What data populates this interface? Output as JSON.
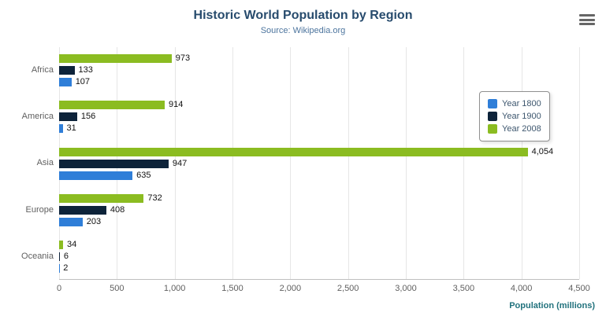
{
  "chart_data": {
    "type": "bar",
    "title": "Historic World Population by Region",
    "subtitle": "Source: Wikipedia.org",
    "xlabel": "Population (millions)",
    "categories": [
      "Africa",
      "America",
      "Asia",
      "Europe",
      "Oceania"
    ],
    "series": [
      {
        "name": "Year 1800",
        "color": "#2f7ed8",
        "values": [
          107,
          31,
          635,
          203,
          2
        ]
      },
      {
        "name": "Year 1900",
        "color": "#0d233a",
        "values": [
          133,
          156,
          947,
          408,
          6
        ]
      },
      {
        "name": "Year 2008",
        "color": "#8bbc21",
        "values": [
          973,
          914,
          4054,
          732,
          34
        ]
      }
    ],
    "bar_order_top_to_bottom": [
      "Year 2008",
      "Year 1900",
      "Year 1800"
    ],
    "xlim": [
      0,
      4500
    ],
    "xticks": [
      "0",
      "500",
      "1,000",
      "1,500",
      "2,000",
      "2,500",
      "3,000",
      "3,500",
      "4,000",
      "4,500"
    ],
    "grid": true,
    "data_labels": true,
    "legend_position": "right",
    "colors": {
      "title": "#274b6d",
      "subtitle": "#4d759e",
      "axis_text": "#606060",
      "xlabel": "#21727d",
      "gridline": "#e6e6e6"
    },
    "menu_icon": "hamburger-icon"
  }
}
